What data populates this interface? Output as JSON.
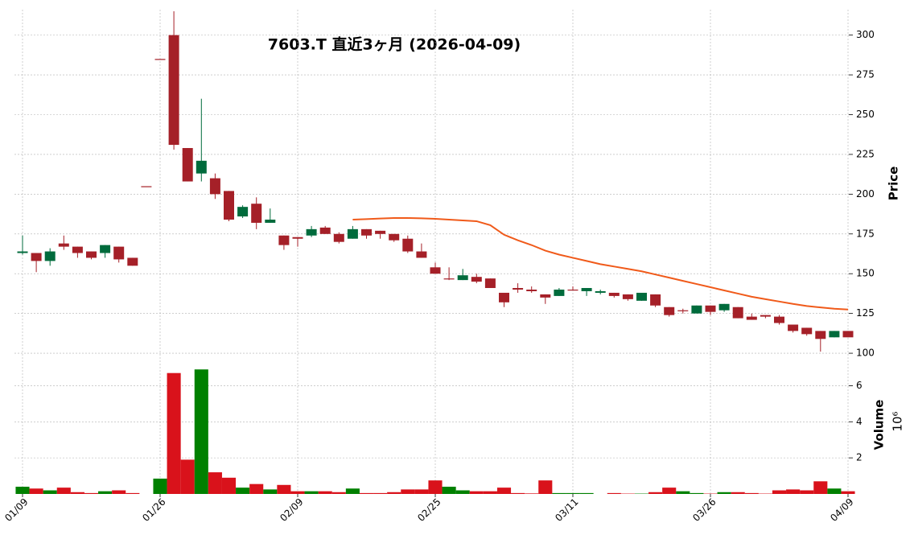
{
  "chart_data": {
    "type": "candlestick",
    "title": "7603.T  直近3ヶ月  (2026-04-09)",
    "categories": [
      "01/09",
      null,
      null,
      null,
      null,
      null,
      null,
      null,
      null,
      null,
      "01/26",
      null,
      null,
      null,
      null,
      null,
      null,
      null,
      null,
      null,
      "02/09",
      null,
      null,
      null,
      null,
      null,
      null,
      null,
      null,
      null,
      "02/25",
      null,
      null,
      null,
      null,
      null,
      null,
      null,
      null,
      null,
      "03/11",
      null,
      null,
      null,
      null,
      null,
      null,
      null,
      null,
      null,
      "03/26",
      null,
      null,
      null,
      null,
      null,
      null,
      null,
      null,
      null,
      "04/09"
    ],
    "open": [
      163,
      163,
      158,
      169,
      167,
      164,
      163,
      167,
      160,
      205,
      285,
      300,
      229,
      213,
      210,
      202,
      186,
      194,
      182,
      174,
      173,
      174,
      179,
      175,
      172,
      178,
      177,
      175,
      172,
      164,
      154,
      147,
      146,
      148,
      147,
      138,
      141,
      140,
      137,
      136,
      140,
      139,
      138,
      138,
      137,
      133,
      137,
      129,
      127,
      125,
      130,
      127,
      129,
      123,
      124,
      123,
      118,
      116,
      114,
      110,
      114
    ],
    "high": [
      174,
      163,
      166,
      174,
      167,
      164,
      168,
      167,
      160,
      205,
      285,
      315,
      229,
      260,
      213,
      202,
      193,
      198,
      191,
      174,
      173,
      180,
      180,
      176,
      180,
      178,
      177,
      175,
      174,
      169,
      157,
      154,
      153,
      150,
      147,
      138,
      144,
      142,
      137,
      141,
      142,
      141,
      140,
      138,
      137,
      138,
      137,
      129,
      128,
      130,
      130,
      131,
      129,
      125,
      124,
      124,
      118,
      116,
      114,
      114,
      114
    ],
    "low": [
      162,
      151,
      155,
      165,
      160,
      159,
      160,
      157,
      155,
      205,
      285,
      228,
      208,
      208,
      197,
      183,
      185,
      178,
      182,
      165,
      167,
      173,
      175,
      169,
      172,
      172,
      172,
      170,
      163,
      160,
      150,
      146,
      146,
      144,
      141,
      129,
      138,
      138,
      131,
      136,
      140,
      136,
      137,
      135,
      133,
      133,
      129,
      123,
      125,
      125,
      124,
      126,
      122,
      121,
      122,
      118,
      113,
      111,
      101,
      110,
      110
    ],
    "close": [
      164,
      158,
      164,
      167,
      163,
      160,
      168,
      159,
      155,
      205,
      285,
      231,
      208,
      221,
      200,
      184,
      192,
      182,
      184,
      168,
      172,
      178,
      175,
      170,
      178,
      174,
      175,
      171,
      164,
      160,
      150,
      147,
      149,
      145,
      141,
      132,
      140,
      139,
      135,
      140,
      140,
      141,
      139,
      136,
      134,
      138,
      130,
      124,
      127,
      130,
      126,
      131,
      122,
      121,
      123,
      119,
      114,
      112,
      109,
      114,
      110
    ],
    "up_color": "#006b3c",
    "down_color": "#a52028",
    "lines": [
      {
        "color": "#f05a1a",
        "values": [
          null,
          null,
          null,
          null,
          null,
          null,
          null,
          null,
          null,
          null,
          null,
          null,
          null,
          null,
          null,
          null,
          null,
          null,
          null,
          null,
          null,
          null,
          null,
          null,
          184,
          184.3,
          184.7,
          185,
          185,
          184.8,
          184.5,
          184,
          183.5,
          183,
          180.5,
          174.5,
          171,
          168,
          164.5,
          162,
          160,
          158,
          156,
          154.5,
          153,
          151.5,
          149.5,
          147.5,
          145.5,
          143.5,
          141.5,
          139.5,
          137.5,
          135.5,
          134,
          132.5,
          131,
          129.7,
          128.8,
          128,
          127.5
        ]
      }
    ],
    "ylim": [
      96.5,
      316
    ],
    "yticks": [
      100,
      125,
      150,
      175,
      200,
      225,
      250,
      275,
      300
    ],
    "ylabel": "Price",
    "grid": true,
    "volume": {
      "values": [
        0.4,
        0.3,
        0.2,
        0.35,
        0.1,
        0.05,
        0.15,
        0.2,
        0.05,
        0,
        0.85,
        6.7,
        1.9,
        6.9,
        1.2,
        0.9,
        0.35,
        0.55,
        0.25,
        0.5,
        0.15,
        0.15,
        0.15,
        0.1,
        0.3,
        0.05,
        0.05,
        0.1,
        0.25,
        0.25,
        0.75,
        0.4,
        0.2,
        0.15,
        0.15,
        0.35,
        0.05,
        0.03,
        0.75,
        0.05,
        0.05,
        0.05,
        0,
        0.05,
        0.02,
        0.02,
        0.1,
        0.35,
        0.15,
        0.05,
        0.02,
        0.1,
        0.1,
        0.05,
        0.02,
        0.2,
        0.25,
        0.2,
        0.7,
        0.3,
        0.15
      ],
      "up_color": "#008000",
      "down_color": "#d9121b",
      "ylim": [
        0,
        7.4
      ],
      "yticks": [
        2,
        4,
        6
      ],
      "ylabel": "Volume",
      "offset_label": "10⁶"
    }
  }
}
